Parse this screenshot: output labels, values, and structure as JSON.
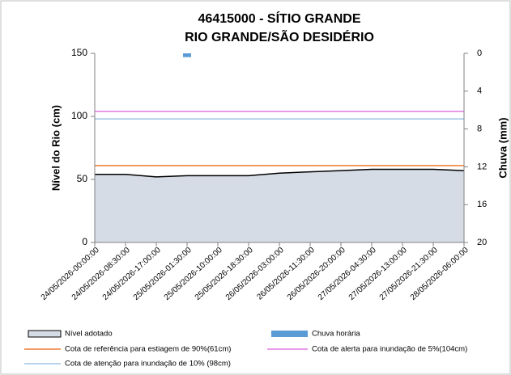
{
  "chart_data": {
    "type": "combo",
    "title": "46415000 - SÍTIO GRANDE",
    "subtitle": "RIO GRANDE/SÃO DESIDÉRIO",
    "ylabel": "Nível do Rio (cm)",
    "y2label": "Chuva (mm)",
    "categories": [
      "24/05/2026-00:00:00",
      "24/05/2026-08:30:00",
      "24/05/2026-17:00:00",
      "25/05/2026-01:30:00",
      "25/05/2026-10:00:00",
      "25/05/2026-18:30:00",
      "26/05/2026-03:00:00",
      "26/05/2026-11:30:00",
      "26/05/2026-20:00:00",
      "27/05/2026-04:30:00",
      "27/05/2026-13:00:00",
      "27/05/2026-21:30:00",
      "28/05/2026-06:00:00"
    ],
    "series": [
      {
        "name": "Nível adotado",
        "type": "area",
        "color": "#d6dce5",
        "line_color": "#000000",
        "values": [
          54,
          54,
          52,
          53,
          53,
          53,
          55,
          56,
          57,
          58,
          58,
          58,
          57
        ]
      },
      {
        "name": "Chuva horária",
        "type": "bar",
        "axis": "y2",
        "color": "#5b9bd5",
        "values": [
          null,
          null,
          null,
          0.4,
          null,
          null,
          null,
          null,
          null,
          null,
          null,
          null,
          null
        ]
      }
    ],
    "reference_lines": [
      {
        "name": "Cota de referência para estiagem de 90%(61cm)",
        "value": 61,
        "color": "#ed7d31"
      },
      {
        "name": "Cota de alerta para inundação de 5%(104cm)",
        "value": 104,
        "color": "#e07be0"
      },
      {
        "name": "Cota de atenção para inundação de 10% (98cm)",
        "value": 98,
        "color": "#9dc3e6"
      }
    ],
    "ylim": [
      0,
      150
    ],
    "yticks": [
      0,
      50,
      100,
      150
    ],
    "y2lim": [
      0,
      20
    ],
    "y2ticks": [
      0,
      4,
      8,
      12,
      16,
      20
    ],
    "y2_inverted": true
  }
}
